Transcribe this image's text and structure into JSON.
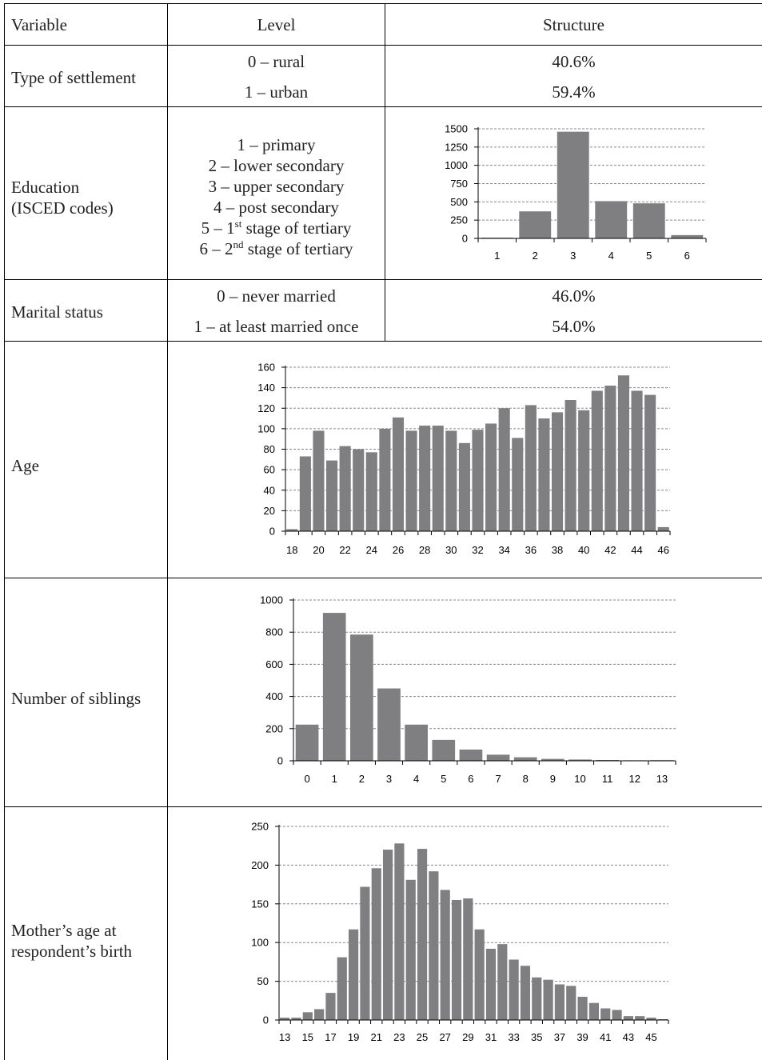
{
  "header": {
    "variable": "Variable",
    "level": "Level",
    "structure": "Structure"
  },
  "rows": {
    "settlement": {
      "variable": "Type of settlement",
      "levels": [
        "0 – rural",
        "1 – urban"
      ],
      "structure": [
        "40.6%",
        "59.4%"
      ]
    },
    "education": {
      "variable_line1": "Education",
      "variable_line2": "(ISCED codes)",
      "levels": [
        {
          "pre": "1 – primary",
          "sup": "",
          "post": ""
        },
        {
          "pre": "2 – lower secondary",
          "sup": "",
          "post": ""
        },
        {
          "pre": "3 – upper secondary",
          "sup": "",
          "post": ""
        },
        {
          "pre": "4 – post secondary",
          "sup": "",
          "post": ""
        },
        {
          "pre": "5 – 1",
          "sup": "st",
          "post": " stage of tertiary"
        },
        {
          "pre": "6 – 2",
          "sup": "nd",
          "post": " stage of tertiary"
        }
      ]
    },
    "marital": {
      "variable": "Marital status",
      "levels": [
        "0 – never married",
        "1 – at least married once"
      ],
      "structure": [
        "46.0%",
        "54.0%"
      ]
    },
    "age": {
      "variable": "Age"
    },
    "siblings": {
      "variable": "Number of siblings"
    },
    "mother": {
      "variable_line1": "Mother’s age at",
      "variable_line2": "respondent’s birth"
    }
  },
  "colors": {
    "bar": "#7f7f81",
    "grid": "#888888",
    "line": "#000000"
  },
  "chart_data": [
    {
      "id": "education",
      "type": "bar",
      "categories": [
        "1",
        "2",
        "3",
        "4",
        "5",
        "6"
      ],
      "values": [
        10,
        370,
        1460,
        510,
        480,
        45
      ],
      "yticks": [
        0,
        250,
        500,
        750,
        1000,
        1250,
        1500
      ],
      "ylim": [
        0,
        1500
      ],
      "xlabel": "",
      "ylabel": "",
      "grid": true
    },
    {
      "id": "age",
      "type": "bar",
      "categories": [
        "18",
        "19",
        "20",
        "21",
        "22",
        "23",
        "24",
        "25",
        "26",
        "27",
        "28",
        "29",
        "30",
        "31",
        "32",
        "33",
        "34",
        "35",
        "36",
        "37",
        "38",
        "39",
        "40",
        "41",
        "42",
        "43",
        "44",
        "45",
        "46"
      ],
      "xticklabels": [
        "18",
        "20",
        "22",
        "24",
        "26",
        "28",
        "30",
        "32",
        "34",
        "36",
        "38",
        "40",
        "42",
        "44",
        "46"
      ],
      "values": [
        2,
        73,
        98,
        69,
        83,
        80,
        77,
        100,
        111,
        98,
        103,
        103,
        98,
        86,
        99,
        105,
        120,
        91,
        123,
        110,
        116,
        128,
        118,
        137,
        142,
        152,
        137,
        133,
        4
      ],
      "yticks": [
        0,
        20,
        40,
        60,
        80,
        100,
        120,
        140,
        160
      ],
      "ylim": [
        0,
        160
      ],
      "xlabel": "",
      "ylabel": "",
      "grid": true
    },
    {
      "id": "siblings",
      "type": "bar",
      "categories": [
        "0",
        "1",
        "2",
        "3",
        "4",
        "5",
        "6",
        "7",
        "8",
        "9",
        "10",
        "11",
        "12",
        "13"
      ],
      "values": [
        225,
        920,
        785,
        450,
        225,
        130,
        70,
        38,
        22,
        12,
        8,
        5,
        3,
        4
      ],
      "yticks": [
        0,
        200,
        400,
        600,
        800,
        1000
      ],
      "ylim": [
        0,
        1000
      ],
      "xlabel": "",
      "ylabel": "",
      "grid": true
    },
    {
      "id": "mother",
      "type": "bar",
      "categories": [
        "13",
        "14",
        "15",
        "16",
        "17",
        "18",
        "19",
        "20",
        "21",
        "22",
        "23",
        "24",
        "25",
        "26",
        "27",
        "28",
        "29",
        "30",
        "31",
        "32",
        "33",
        "34",
        "35",
        "36",
        "37",
        "38",
        "39",
        "40",
        "41",
        "42",
        "43",
        "44",
        "45",
        "46"
      ],
      "xticklabels": [
        "13",
        "15",
        "17",
        "19",
        "21",
        "23",
        "25",
        "27",
        "29",
        "31",
        "33",
        "35",
        "37",
        "39",
        "41",
        "43",
        "45"
      ],
      "values": [
        3,
        3,
        10,
        14,
        35,
        81,
        117,
        172,
        196,
        220,
        228,
        181,
        221,
        192,
        168,
        155,
        157,
        117,
        92,
        98,
        78,
        70,
        55,
        52,
        46,
        44,
        30,
        22,
        15,
        13,
        5,
        5,
        3,
        1
      ],
      "yticks": [
        0,
        50,
        100,
        150,
        200,
        250
      ],
      "ylim": [
        0,
        250
      ],
      "xlabel": "",
      "ylabel": "",
      "grid": true
    }
  ]
}
